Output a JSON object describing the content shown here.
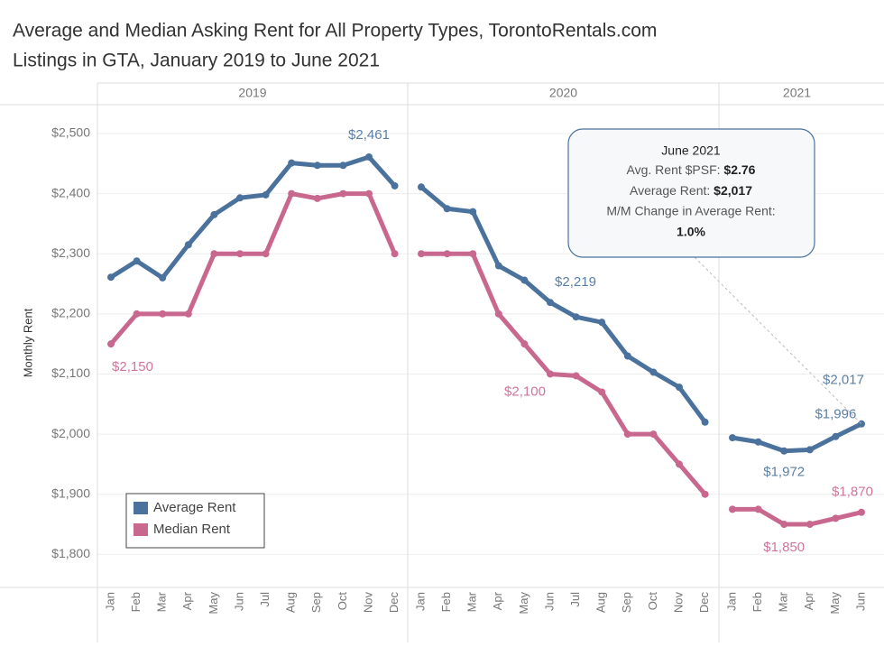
{
  "chart_data": {
    "type": "line",
    "title": "Average and Median Asking Rent for All Property Types, TorontoRentals.com",
    "subtitle": "Listings in GTA, January 2019 to June 2021",
    "y_label": "Monthly Rent",
    "panels": [
      {
        "label": "2019",
        "categories": [
          "Jan",
          "Feb",
          "Mar",
          "Apr",
          "May",
          "Jun",
          "Jul",
          "Aug",
          "Sep",
          "Oct",
          "Nov",
          "Dec"
        ]
      },
      {
        "label": "2020",
        "categories": [
          "Jan",
          "Feb",
          "Mar",
          "Apr",
          "May",
          "Jun",
          "Jul",
          "Aug",
          "Sep",
          "Oct",
          "Nov",
          "Dec"
        ]
      },
      {
        "label": "2021",
        "categories": [
          "Jan",
          "Feb",
          "Mar",
          "Apr",
          "May",
          "Jun"
        ]
      }
    ],
    "series": [
      {
        "name": "Average Rent",
        "color": "#4a729c",
        "values": [
          2261,
          2288,
          2260,
          2315,
          2365,
          2393,
          2398,
          2451,
          2447,
          2447,
          2461,
          2413,
          2411,
          2375,
          2370,
          2280,
          2256,
          2219,
          2195,
          2186,
          2130,
          2103,
          2078,
          2020,
          1994,
          1987,
          1972,
          1974,
          1996,
          2017
        ],
        "value_labels": [
          null,
          null,
          null,
          null,
          null,
          null,
          null,
          null,
          null,
          null,
          "$2,461",
          null,
          null,
          null,
          null,
          null,
          null,
          "$2,219",
          null,
          null,
          null,
          null,
          null,
          null,
          null,
          null,
          "$1,972",
          null,
          "$1,996",
          "$2,017"
        ]
      },
      {
        "name": "Median Rent",
        "color": "#c9688f",
        "values": [
          2150,
          2200,
          2200,
          2200,
          2300,
          2300,
          2300,
          2400,
          2392,
          2400,
          2400,
          2300,
          2300,
          2300,
          2300,
          2200,
          2150,
          2100,
          2097,
          2070,
          2000,
          2000,
          1950,
          1900,
          1875,
          1875,
          1850,
          1850,
          1860,
          1870
        ],
        "value_labels": [
          "$2,150",
          null,
          null,
          null,
          null,
          null,
          null,
          null,
          null,
          null,
          null,
          null,
          null,
          null,
          null,
          null,
          null,
          "$2,100",
          null,
          null,
          null,
          null,
          null,
          null,
          null,
          null,
          "$1,850",
          null,
          null,
          "$1,870"
        ]
      }
    ],
    "ylim": [
      1745,
      2545
    ],
    "yticks": [
      {
        "value": 1800,
        "label": "$1,800"
      },
      {
        "value": 1900,
        "label": "$1,900"
      },
      {
        "value": 2000,
        "label": "$2,000"
      },
      {
        "value": 2100,
        "label": "$2,100"
      },
      {
        "value": 2200,
        "label": "$2,200"
      },
      {
        "value": 2300,
        "label": "$2,300"
      },
      {
        "value": 2400,
        "label": "$2,400"
      },
      {
        "value": 2500,
        "label": "$2,500"
      }
    ],
    "grid": true,
    "legend": "bottom-left",
    "tooltip": {
      "title": "June 2021",
      "rows": [
        {
          "label": "Avg. Rent $PSF:",
          "value": "$2.76"
        },
        {
          "label": "Average Rent:",
          "value": "$2,017"
        },
        {
          "label": "M/M Change in Average Rent:",
          "value": "1.0%"
        }
      ]
    }
  }
}
